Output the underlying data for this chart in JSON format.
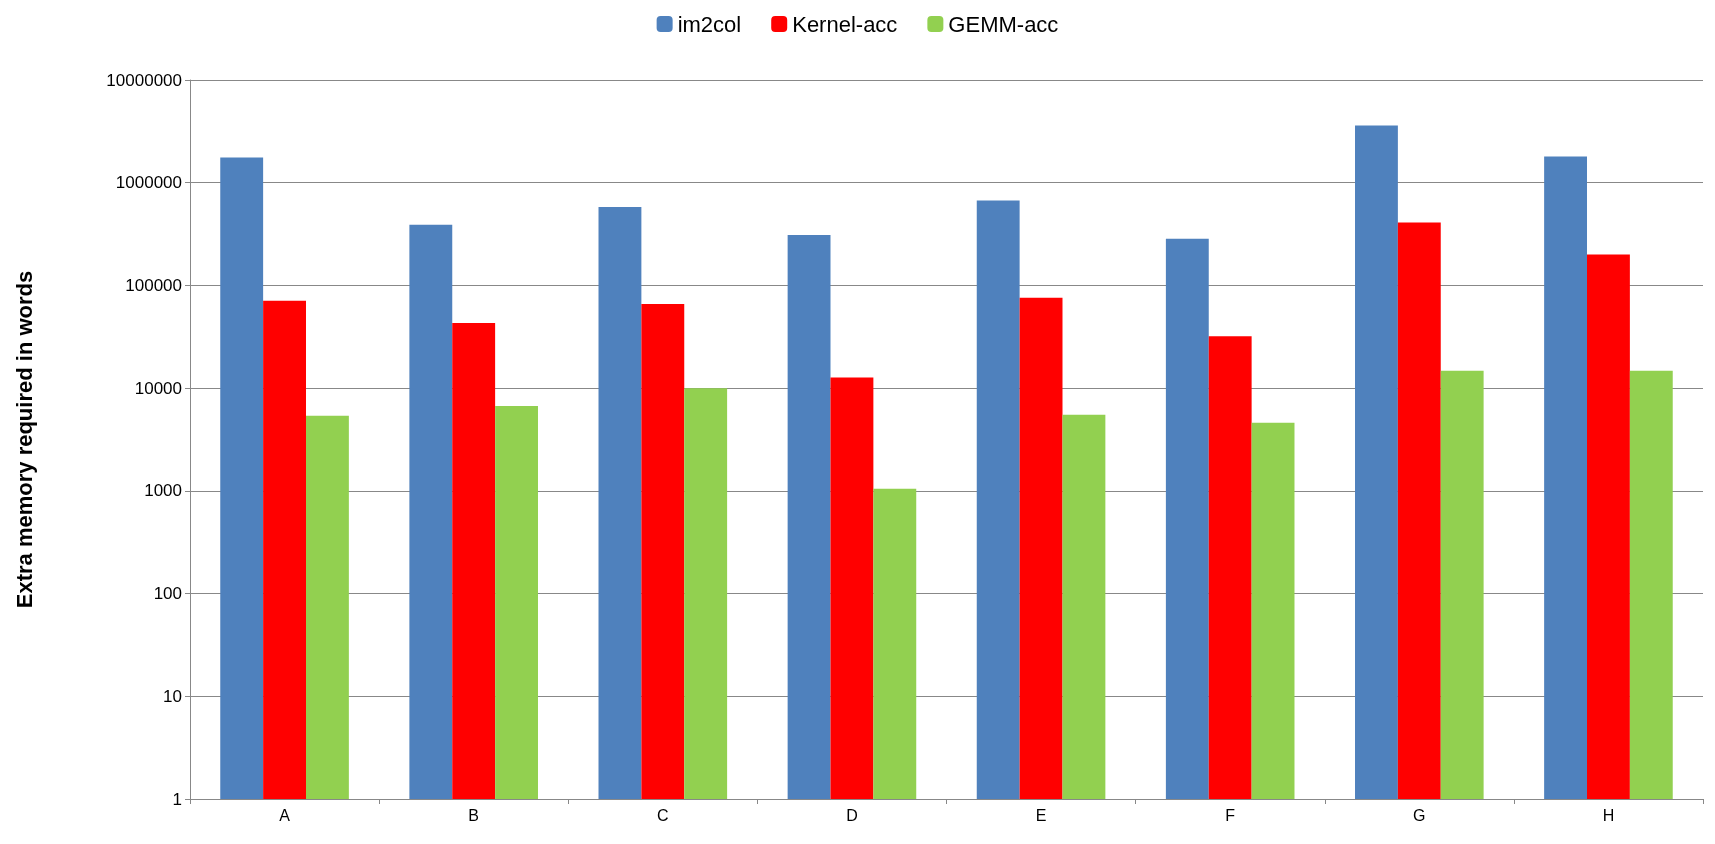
{
  "chart_data": {
    "type": "bar",
    "ylabel": "Extra memory required in words",
    "categories": [
      "A",
      "B",
      "C",
      "D",
      "E",
      "F",
      "G",
      "H"
    ],
    "series": [
      {
        "name": "im2col",
        "color": "#4f81bd",
        "values": [
          1760000,
          390000,
          580000,
          310000,
          670000,
          285000,
          3600000,
          1800000
        ]
      },
      {
        "name": "Kernel-acc",
        "color": "#ff0000",
        "values": [
          71000,
          43000,
          66000,
          12700,
          76000,
          32000,
          410000,
          200000
        ]
      },
      {
        "name": "GEMM-acc",
        "color": "#92d050",
        "values": [
          5400,
          6700,
          10000,
          1050,
          5500,
          4600,
          14800,
          14800
        ]
      }
    ],
    "log": true,
    "ylim": [
      1,
      10000000
    ],
    "yticks": [
      1,
      10,
      100,
      1000,
      10000,
      100000,
      1000000,
      10000000
    ],
    "grid": "y",
    "legend": "top"
  }
}
